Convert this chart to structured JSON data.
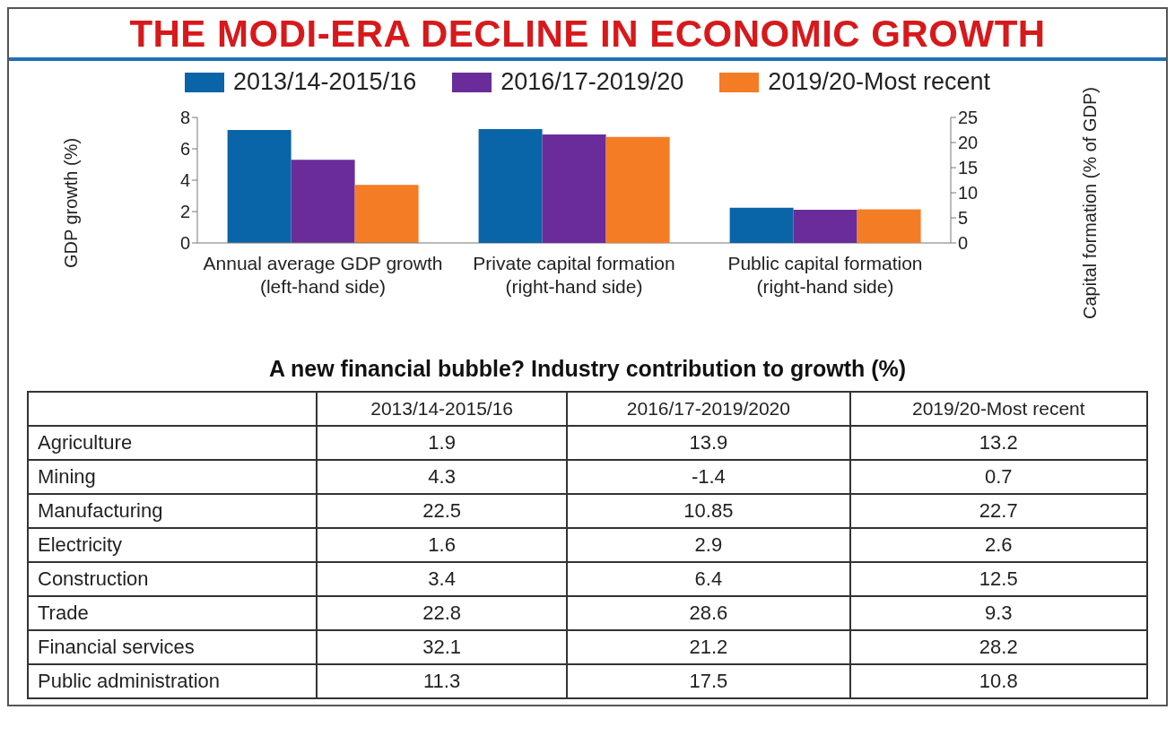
{
  "chart_data": [
    {
      "type": "bar",
      "title": "THE MODI-ERA DECLINE IN ECONOMIC GROWTH",
      "ylabel": "GDP growth (%)",
      "y2label": "Capital formation (% of GDP)",
      "categories": [
        "Annual average GDP growth (left-hand side)",
        "Private capital formation (right-hand side)",
        "Public capital formation (right-hand side)"
      ],
      "series": [
        {
          "name": "2013/14-2015/16",
          "color": "#0a64a8",
          "values": [
            7.2,
            null,
            null
          ]
        },
        {
          "name": "2016/17-2019/20",
          "color": "#6a2c9a",
          "values": [
            5.3,
            null,
            null
          ]
        },
        {
          "name": "2019/20-Most recent",
          "color": "#f47c25",
          "values": [
            3.7,
            null,
            null
          ]
        },
        {
          "color": "#0a64a8",
          "axis": "y2",
          "values": [
            null,
            22.7,
            7.0
          ]
        },
        {
          "color": "#6a2c9a",
          "axis": "y2",
          "values": [
            null,
            21.6,
            6.6
          ]
        },
        {
          "color": "#f47c25",
          "axis": "y2",
          "values": [
            null,
            21.1,
            6.7
          ]
        }
      ],
      "ylim": [
        0,
        8
      ],
      "yticks": [
        0,
        2,
        4,
        6,
        8
      ],
      "y2lim": [
        0,
        25
      ],
      "y2ticks": [
        0,
        5,
        10,
        15,
        20,
        25
      ],
      "legend": "top",
      "grid": false
    },
    {
      "type": "heatmap",
      "title": "A new financial bubble? Industry contribution to growth (%)",
      "categories": [
        "2013/14-2015/16",
        "2016/17-2019/2020",
        "2019/20-Most recent"
      ],
      "data_labels": true,
      "y_categories": [
        "Agriculture",
        "Mining",
        "Manufacturing",
        "Electricity",
        "Construction",
        "Trade",
        "Financial services",
        "Public administration"
      ],
      "cells": [
        [
          1.9,
          13.9,
          13.2
        ],
        [
          4.3,
          -1.4,
          0.7
        ],
        [
          22.5,
          10.85,
          22.7
        ],
        [
          1.6,
          2.9,
          2.6
        ],
        [
          3.4,
          6.4,
          12.5
        ],
        [
          22.8,
          28.6,
          9.3
        ],
        [
          32.1,
          21.2,
          28.2
        ],
        [
          11.3,
          17.5,
          10.8
        ]
      ]
    }
  ]
}
